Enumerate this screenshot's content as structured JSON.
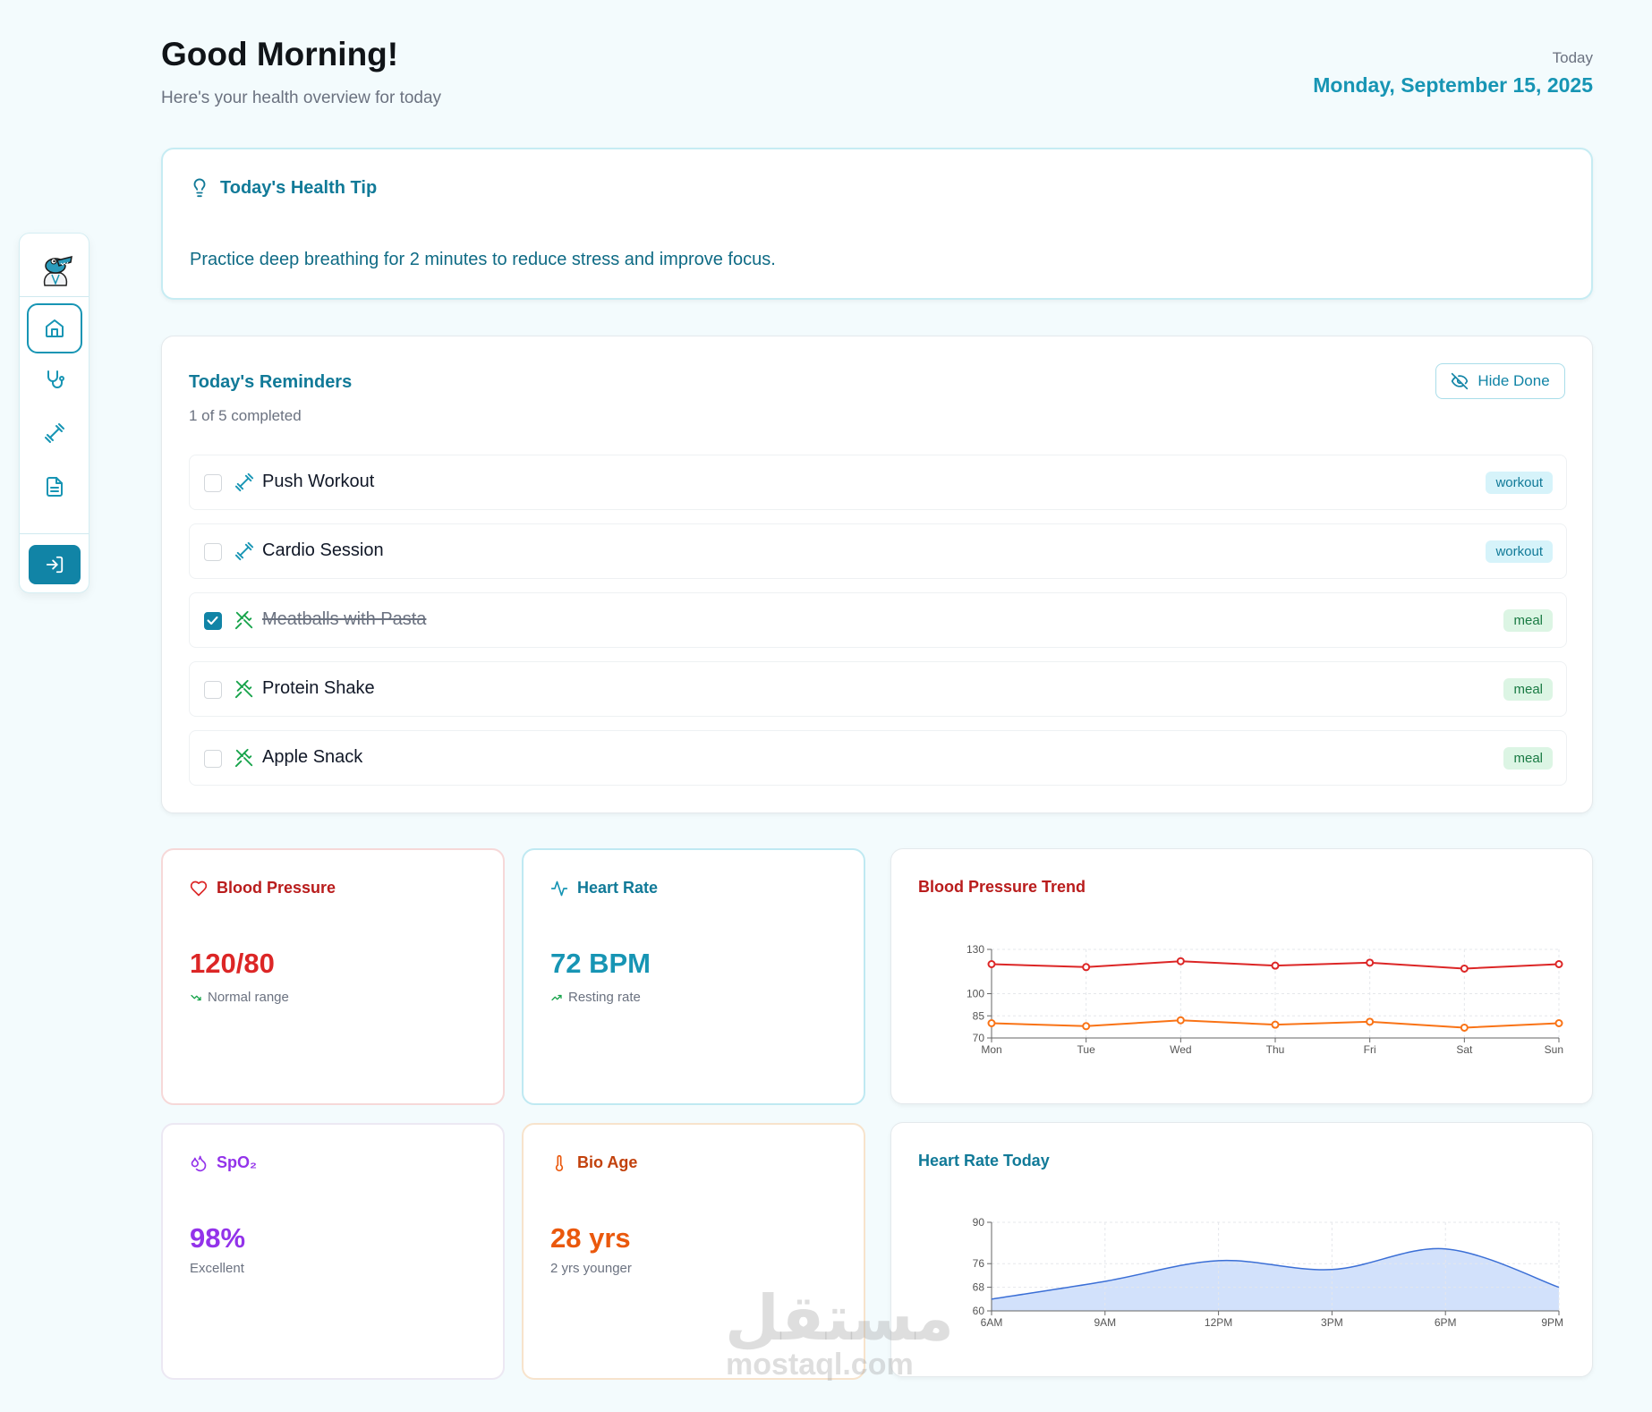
{
  "header": {
    "greeting": "Good Morning!",
    "subtitle": "Here's your health overview for today",
    "today_label": "Today",
    "date": "Monday, September 15, 2025"
  },
  "sidebar": {
    "logo": "crocodile-doctor-logo",
    "items": [
      {
        "name": "home",
        "icon": "home-icon",
        "active": true
      },
      {
        "name": "health",
        "icon": "stethoscope-icon",
        "active": false
      },
      {
        "name": "fitness",
        "icon": "dumbbell-icon",
        "active": false
      },
      {
        "name": "reports",
        "icon": "document-icon",
        "active": false
      }
    ],
    "login_icon": "login-icon"
  },
  "tip": {
    "title": "Today's Health Tip",
    "text": "Practice deep breathing for 2 minutes to reduce stress and improve focus."
  },
  "reminders": {
    "title": "Today's Reminders",
    "count_text": "1 of 5 completed",
    "hide_label": "Hide Done",
    "items": [
      {
        "label": "Push Workout",
        "tag": "workout",
        "done": false
      },
      {
        "label": "Cardio Session",
        "tag": "workout",
        "done": false
      },
      {
        "label": "Meatballs with Pasta",
        "tag": "meal",
        "done": true
      },
      {
        "label": "Protein Shake",
        "tag": "meal",
        "done": false
      },
      {
        "label": "Apple Snack",
        "tag": "meal",
        "done": false
      }
    ]
  },
  "metrics": {
    "blood_pressure": {
      "title": "Blood Pressure",
      "value": "120/80",
      "note": "Normal range",
      "color": "#dc2626"
    },
    "heart_rate": {
      "title": "Heart Rate",
      "value": "72 BPM",
      "note": "Resting rate",
      "color": "#1795b4"
    },
    "spo2": {
      "title": "SpO₂",
      "value": "98%",
      "note": "Excellent",
      "color": "#9333ea"
    },
    "bio_age": {
      "title": "Bio Age",
      "value": "28 yrs",
      "note": "2 yrs younger",
      "color": "#ea580c"
    }
  },
  "colors": {
    "accent": "#1795b4",
    "workout_icon": "#1795b4",
    "meal_icon": "#16a34a"
  },
  "chart_data": [
    {
      "type": "line",
      "title": "Blood Pressure Trend",
      "categories": [
        "Mon",
        "Tue",
        "Wed",
        "Thu",
        "Fri",
        "Sat",
        "Sun"
      ],
      "series": [
        {
          "values": [
            120,
            118,
            122,
            119,
            121,
            117,
            120
          ],
          "color": "#dc2626"
        },
        {
          "values": [
            80,
            78,
            82,
            79,
            81,
            77,
            80
          ],
          "color": "#f97316"
        }
      ],
      "yticks": [
        70,
        85,
        100,
        130
      ],
      "ylim": [
        70,
        130
      ],
      "grid": true
    },
    {
      "type": "area",
      "title": "Heart Rate Today",
      "categories": [
        "6AM",
        "9AM",
        "12PM",
        "3PM",
        "6PM",
        "9PM"
      ],
      "values": [
        64,
        70,
        77,
        74,
        81,
        68
      ],
      "color": "#3b6fd6",
      "yticks": [
        60,
        68,
        76,
        90
      ],
      "ylim": [
        60,
        90
      ],
      "grid": true
    }
  ],
  "watermark": {
    "arabic": "مستقل",
    "latin": "mostaql.com"
  }
}
